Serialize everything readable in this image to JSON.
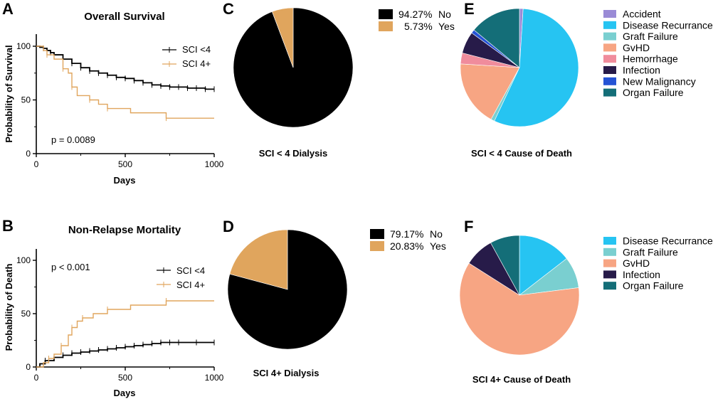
{
  "colors": {
    "sci_lt4": "#000000",
    "sci_4plus": "#E0A55D"
  },
  "chart_data": [
    {
      "id": "A",
      "panel_label": "A",
      "type": "line",
      "title": "Overall Survival",
      "xlabel": "Days",
      "ylabel": "Probability of Survival",
      "xlim": [
        0,
        1000
      ],
      "ylim": [
        0,
        100
      ],
      "xticks": [
        0,
        500,
        1000
      ],
      "yticks": [
        0,
        50,
        100
      ],
      "annotation": "p = 0.0089",
      "series": [
        {
          "name": "SCI <4",
          "color": "#000000",
          "x": [
            0,
            20,
            40,
            60,
            80,
            100,
            150,
            200,
            250,
            300,
            350,
            400,
            450,
            500,
            550,
            600,
            650,
            700,
            750,
            800,
            850,
            900,
            950,
            1000
          ],
          "y": [
            100,
            99,
            98,
            96,
            94,
            92,
            88,
            84,
            80,
            77,
            75,
            73,
            71,
            70,
            68,
            66,
            64,
            63,
            62,
            62,
            61,
            61,
            60,
            60
          ]
        },
        {
          "name": "SCI 4+",
          "color": "#E0A55D",
          "x": [
            0,
            40,
            60,
            100,
            150,
            180,
            200,
            230,
            300,
            350,
            400,
            530,
            730,
            1000
          ],
          "y": [
            100,
            96,
            92,
            88,
            79,
            75,
            62,
            54,
            50,
            46,
            42,
            38,
            33,
            33
          ]
        }
      ]
    },
    {
      "id": "B",
      "panel_label": "B",
      "type": "line",
      "title": "Non-Relapse Mortality",
      "xlabel": "Days",
      "ylabel": "Probability of Death",
      "xlim": [
        0,
        1000
      ],
      "ylim": [
        0,
        110
      ],
      "xticks": [
        0,
        500,
        1000
      ],
      "yticks": [
        0,
        50,
        100
      ],
      "annotation": "p < 0.001",
      "series": [
        {
          "name": "SCI <4",
          "color": "#000000",
          "x": [
            0,
            20,
            50,
            100,
            150,
            200,
            250,
            300,
            350,
            400,
            450,
            500,
            550,
            600,
            650,
            700,
            750,
            800,
            900,
            1000
          ],
          "y": [
            0,
            3,
            6,
            9,
            11,
            13,
            14,
            15,
            16,
            17,
            18,
            19,
            20,
            21,
            22,
            23,
            23,
            23,
            23,
            23
          ]
        },
        {
          "name": "SCI 4+",
          "color": "#E0A55D",
          "x": [
            0,
            40,
            70,
            100,
            140,
            180,
            200,
            230,
            260,
            320,
            400,
            530,
            730,
            1000
          ],
          "y": [
            0,
            4,
            8,
            12,
            20,
            30,
            37,
            43,
            46,
            50,
            54,
            58,
            62,
            62
          ]
        }
      ]
    },
    {
      "id": "C",
      "panel_label": "C",
      "type": "pie",
      "title": "SCI < 4 Dialysis",
      "slices": [
        {
          "label": "No",
          "pct_label": "94.27%",
          "value": 94.27,
          "color": "#000000"
        },
        {
          "label": "Yes",
          "pct_label": "5.73%",
          "value": 5.73,
          "color": "#E0A55D"
        }
      ]
    },
    {
      "id": "D",
      "panel_label": "D",
      "type": "pie",
      "title": "SCI 4+  Dialysis",
      "slices": [
        {
          "label": "No",
          "pct_label": "79.17%",
          "value": 79.17,
          "color": "#000000"
        },
        {
          "label": "Yes",
          "pct_label": "20.83%",
          "value": 20.83,
          "color": "#E0A55D"
        }
      ]
    },
    {
      "id": "E",
      "panel_label": "E",
      "type": "pie",
      "title": "SCI < 4 Cause of Death",
      "slices": [
        {
          "label": "Accident",
          "value": 1,
          "color": "#9A8BD6"
        },
        {
          "label": "Disease Recurrance",
          "value": 56,
          "color": "#26C4F2"
        },
        {
          "label": "Graft Failure",
          "value": 1,
          "color": "#7ACFD0"
        },
        {
          "label": "GvHD",
          "value": 18,
          "color": "#F7A583"
        },
        {
          "label": "Hemorrhage",
          "value": 3,
          "color": "#F08C9C"
        },
        {
          "label": "Infection",
          "value": 6,
          "color": "#271B49"
        },
        {
          "label": "New Malignancy",
          "value": 1,
          "color": "#2553D5"
        },
        {
          "label": "Organ Failure",
          "value": 14,
          "color": "#146E78"
        }
      ]
    },
    {
      "id": "F",
      "panel_label": "F",
      "type": "pie",
      "title": "SCI 4+ Cause of Death",
      "slices": [
        {
          "label": "Disease Recurrance",
          "value": 14.5,
          "color": "#26C4F2"
        },
        {
          "label": "Graft Failure",
          "value": 8.5,
          "color": "#7ACFD0"
        },
        {
          "label": "GvHD",
          "value": 61,
          "color": "#F7A583"
        },
        {
          "label": "Infection",
          "value": 8,
          "color": "#271B49"
        },
        {
          "label": "Organ Failure",
          "value": 8,
          "color": "#146E78"
        }
      ]
    }
  ]
}
